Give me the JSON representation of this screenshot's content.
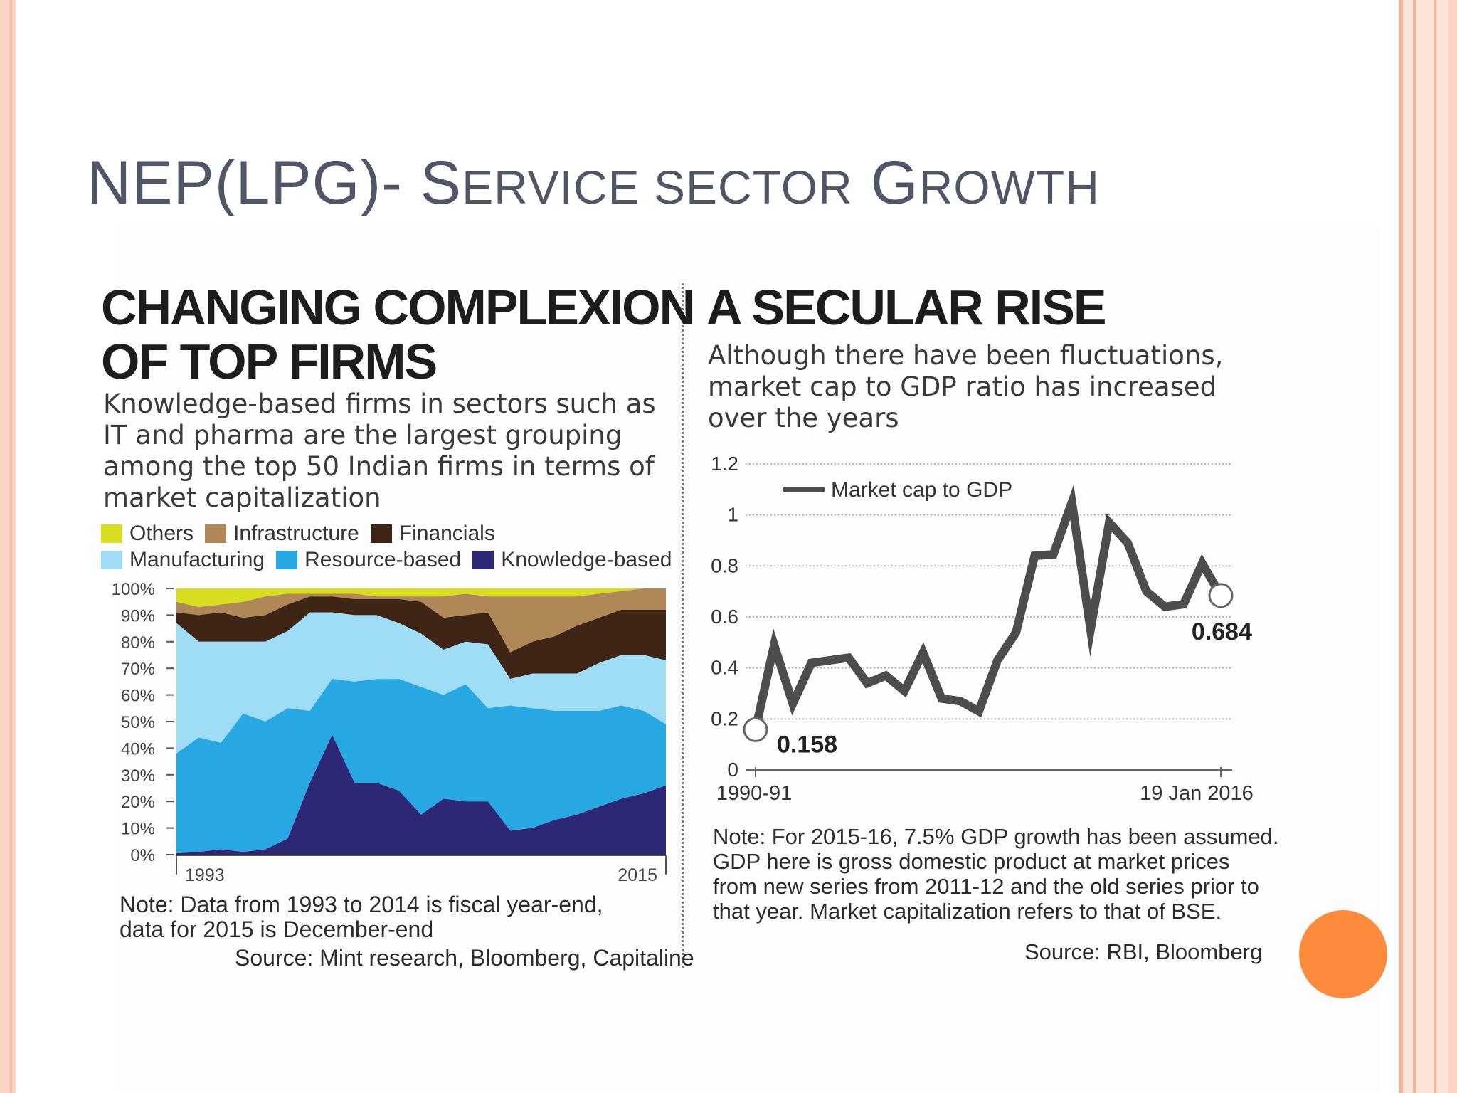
{
  "slide": {
    "title_main": "NEP(LPG)- S",
    "title_sc1": "ERVICE SECTOR",
    "title_g": " G",
    "title_sc2": "ROWTH"
  },
  "left_panel": {
    "headline_line1": "CHANGING COMPLEXION",
    "headline_line2": "OF TOP FIRMS",
    "subtitle_lines": [
      "Knowledge-based firms in sectors such as",
      "IT and pharma are the largest grouping",
      "among the top 50 Indian firms in terms of",
      "market capitalization"
    ],
    "note_lines": [
      "Note: Data from 1993 to 2014 is fiscal year-end,",
      "data for 2015 is December-end"
    ],
    "source": "Source: Mint research, Bloomberg, Capitaline"
  },
  "right_panel": {
    "headline": "A SECULAR RISE",
    "subtitle_lines": [
      "Although there have been fluctuations,",
      "market cap to GDP ratio has increased",
      "over the years"
    ],
    "note_lines": [
      "Note: For 2015-16, 7.5% GDP growth has been assumed.",
      "GDP here is gross domestic product at market prices",
      "from new series from 2011-12 and the old series prior to",
      "that year. Market capitalization refers to that of BSE."
    ],
    "source": "Source: RBI, Bloomberg"
  },
  "chart_data": [
    {
      "type": "area",
      "stacked": true,
      "percent": true,
      "x_start_label": "1993",
      "x_end_label": "2015",
      "y_ticks": [
        "0%",
        "10%",
        "20%",
        "30%",
        "40%",
        "50%",
        "60%",
        "70%",
        "80%",
        "90%",
        "100%"
      ],
      "ylim": [
        0,
        100
      ],
      "legend_rows": [
        [
          "Others",
          "Infrastructure",
          "Financials"
        ],
        [
          "Manufacturing",
          "Resource-based",
          "Knowledge-based"
        ]
      ],
      "cumulative_tops": {
        "Knowledge-based": [
          0.5,
          1,
          2,
          1,
          2,
          6,
          27,
          45,
          27,
          27,
          24,
          15,
          21,
          20,
          20,
          9,
          10,
          13,
          15,
          18,
          21,
          23,
          26
        ],
        "Resource-based": [
          38,
          44,
          42,
          53,
          50,
          55,
          54,
          66,
          65,
          66,
          66,
          63,
          60,
          64,
          55,
          56,
          55,
          54,
          54,
          54,
          56,
          54,
          49
        ],
        "Manufacturing": [
          87,
          80,
          80,
          80,
          80,
          84,
          91,
          91,
          90,
          90,
          87,
          83,
          77,
          80,
          79,
          66,
          68,
          68,
          68,
          72,
          75,
          75,
          73
        ],
        "Financials": [
          91,
          90,
          91,
          89,
          90,
          94,
          97,
          97,
          96,
          96,
          96,
          95,
          89,
          90,
          91,
          76,
          80,
          82,
          86,
          89,
          92,
          92,
          92
        ],
        "Infrastructure": [
          95,
          93,
          94,
          95,
          97,
          98,
          98,
          98,
          98,
          97,
          97,
          97,
          97,
          98,
          97,
          97,
          97,
          97,
          97,
          98,
          99,
          100,
          100
        ],
        "Others": [
          100,
          100,
          100,
          100,
          100,
          100,
          100,
          100,
          100,
          100,
          100,
          100,
          100,
          100,
          100,
          100,
          100,
          100,
          100,
          100,
          100,
          100,
          100
        ]
      },
      "colors": {
        "Others": "#d7dd1f",
        "Infrastructure": "#b08757",
        "Financials": "#3e2516",
        "Manufacturing": "#9fdcf6",
        "Resource-based": "#28a8e2",
        "Knowledge-based": "#2d2875"
      }
    },
    {
      "type": "line",
      "x_start_label": "1990-91",
      "x_end_label": "19 Jan 2016",
      "y_ticks": [
        "0",
        "0.2",
        "0.4",
        "0.6",
        "0.8",
        "1",
        "1.2"
      ],
      "ylim": [
        0,
        1.2
      ],
      "series": [
        {
          "name": "Market cap to GDP",
          "values": [
            0.158,
            0.49,
            0.26,
            0.42,
            0.43,
            0.44,
            0.34,
            0.37,
            0.31,
            0.46,
            0.28,
            0.27,
            0.23,
            0.43,
            0.54,
            0.84,
            0.845,
            1.05,
            0.55,
            0.97,
            0.89,
            0.7,
            0.64,
            0.65,
            0.81,
            0.684
          ],
          "color": "#4d4d4f"
        }
      ],
      "start_label": "0.158",
      "end_label": "0.684"
    }
  ]
}
